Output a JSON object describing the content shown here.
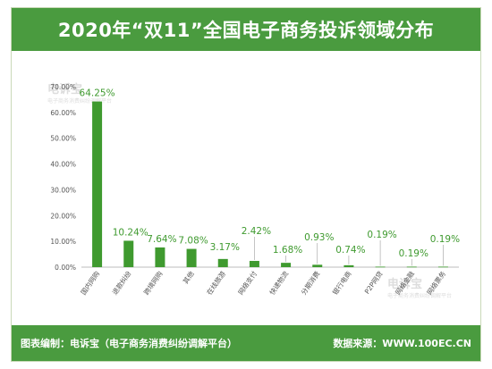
{
  "header": {
    "title": "2020年“双11”全国电子商务投诉领域分布"
  },
  "footer": {
    "left": "图表编制：电诉宝（电子商务消费纠纷调解平台）",
    "right": "数据来源：WWW.100EC.CN"
  },
  "watermark": {
    "text": "电诉宝",
    "sub": "电子商务消费纠纷调解平台"
  },
  "colors": {
    "brand": "#4a9b3f",
    "bar": "#3f9a2f",
    "axis_text": "#555555",
    "value_text": "#3f9a2f"
  },
  "chart_data": {
    "type": "bar",
    "categories": [
      "国内网购",
      "退款纠纷",
      "跨境网购",
      "其他",
      "在线旅游",
      "网络支付",
      "快递物流",
      "分期消费",
      "银行电商",
      "P2P网贷",
      "网络金融",
      "网络票务"
    ],
    "values": [
      64.25,
      10.24,
      7.64,
      7.08,
      3.17,
      2.42,
      1.68,
      0.93,
      0.74,
      0.19,
      0.19,
      0.19
    ],
    "value_labels": [
      "64.25%",
      "10.24%",
      "7.64%",
      "7.08%",
      "3.17%",
      "2.42%",
      "1.68%",
      "0.93%",
      "0.74%",
      "0.19%",
      "0.19%",
      "0.19%"
    ],
    "y_ticks": [
      0,
      10,
      20,
      30,
      40,
      50,
      60,
      70
    ],
    "y_tick_labels": [
      "0.00%",
      "10.00%",
      "20.00%",
      "30.00%",
      "40.00%",
      "50.00%",
      "60.00%",
      "70.00%"
    ],
    "ylim": [
      0,
      70
    ],
    "grid": false,
    "legend": "none"
  }
}
